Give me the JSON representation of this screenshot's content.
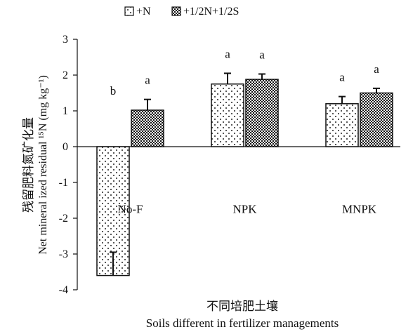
{
  "chart_data": {
    "type": "bar",
    "categories": [
      "No-F",
      "NPK",
      "MNPK"
    ],
    "series": [
      {
        "name": "+N",
        "values": [
          -3.6,
          1.75,
          1.2
        ],
        "errors": [
          0.65,
          0.3,
          0.2
        ],
        "letters": [
          "b",
          "a",
          "a"
        ],
        "pattern": "dots"
      },
      {
        "name": "+1/2N+1/2S",
        "values": [
          1.02,
          1.88,
          1.5
        ],
        "errors": [
          0.3,
          0.15,
          0.13
        ],
        "letters": [
          "a",
          "a",
          "a"
        ],
        "pattern": "checker"
      }
    ],
    "ylim": [
      -4,
      3
    ],
    "yticks": [
      "-4",
      "-3",
      "-2",
      "-1",
      "0",
      "1",
      "2",
      "3"
    ],
    "ylabel_cn": "残留肥料氮矿化量",
    "ylabel_en": "Net mineral ized residual ¹⁵N (mg kg⁻¹)",
    "xlabel_cn": "不同培肥土壤",
    "xlabel_en": "Soils different in fertilizer managements",
    "legend_position": "top-left",
    "grid": false
  }
}
